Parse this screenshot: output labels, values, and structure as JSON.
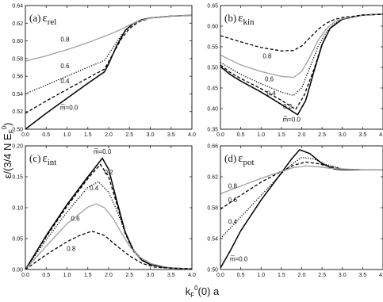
{
  "figure": {
    "ylabel": {
      "main": "ε/(3/4 N E",
      "sub": "F",
      "sup": "0",
      "tail": ")"
    },
    "xlabel": {
      "main": "k",
      "sub": "F",
      "sup": "0",
      "tail": "(0) a"
    }
  },
  "chart_data": [
    {
      "id": "a",
      "type": "line",
      "label_letter": "(a)",
      "label_main": "ε",
      "label_sub": "rel",
      "xlim": [
        0,
        4
      ],
      "ylim": [
        0.5,
        0.64
      ],
      "xticks": [
        "0.0",
        "0.5",
        "1.0",
        "1.5",
        "2.0",
        "2.5",
        "3.0",
        "3.5",
        "4.0"
      ],
      "yticks": [
        "0.50",
        "0.52",
        "0.54",
        "0.56",
        "0.58",
        "0.60",
        "0.62",
        "0.64"
      ],
      "series": [
        {
          "name": "0.0",
          "style": "solid",
          "color": "#000000",
          "x": [
            0.0,
            0.5,
            1.0,
            1.5,
            1.9,
            2.0,
            2.2,
            2.4,
            2.6,
            2.8,
            3.0,
            3.5,
            4.0
          ],
          "y": [
            0.5,
            0.518,
            0.535,
            0.552,
            0.565,
            0.574,
            0.595,
            0.612,
            0.62,
            0.624,
            0.626,
            0.628,
            0.629
          ]
        },
        {
          "name": "0.4",
          "style": "dashed",
          "color": "#000000",
          "x": [
            0.0,
            0.5,
            1.0,
            1.5,
            1.9,
            2.1,
            2.3,
            2.5,
            2.7,
            3.0,
            3.5,
            4.0
          ],
          "y": [
            0.518,
            0.532,
            0.545,
            0.558,
            0.568,
            0.585,
            0.602,
            0.614,
            0.621,
            0.626,
            0.628,
            0.629
          ]
        },
        {
          "name": "0.6",
          "style": "dotted",
          "color": "#000000",
          "x": [
            0.0,
            0.5,
            1.0,
            1.5,
            1.9,
            2.1,
            2.3,
            2.5,
            2.7,
            3.0,
            3.5,
            4.0
          ],
          "y": [
            0.54,
            0.55,
            0.56,
            0.57,
            0.578,
            0.592,
            0.606,
            0.616,
            0.622,
            0.626,
            0.628,
            0.629
          ]
        },
        {
          "name": "0.8",
          "style": "solid",
          "color": "#a0a0a0",
          "x": [
            0.0,
            0.5,
            1.0,
            1.5,
            2.0,
            2.3,
            2.5,
            2.7,
            3.0,
            3.5,
            4.0
          ],
          "y": [
            0.577,
            0.583,
            0.59,
            0.598,
            0.607,
            0.613,
            0.618,
            0.622,
            0.626,
            0.628,
            0.629
          ]
        }
      ],
      "annotations": [
        {
          "text": "0.8",
          "x": 0.95,
          "y": 0.599
        },
        {
          "text": "0.6",
          "x": 0.95,
          "y": 0.569
        },
        {
          "text": "0.4",
          "x": 0.95,
          "y": 0.552
        },
        {
          "text": "m̅=0.0",
          "x": 1.05,
          "y": 0.522
        }
      ]
    },
    {
      "id": "b",
      "type": "line",
      "label_letter": "(b)",
      "label_main": "ε",
      "label_sub": "kin",
      "xlim": [
        0,
        4
      ],
      "ylim": [
        0.35,
        0.65
      ],
      "xticks": [
        "0.0",
        "0.5",
        "1.0",
        "1.5",
        "2.0",
        "2.5",
        "3.0",
        "3.5",
        "4.0"
      ],
      "yticks": [
        "0.35",
        "0.40",
        "0.45",
        "0.50",
        "0.55",
        "0.60",
        "0.65"
      ],
      "series": [
        {
          "name": "0.0",
          "style": "solid",
          "color": "#000000",
          "x": [
            0.0,
            0.25,
            0.5,
            1.0,
            1.5,
            1.9,
            2.1,
            2.3,
            2.5,
            2.7,
            3.0,
            3.5,
            4.0
          ],
          "y": [
            0.502,
            0.482,
            0.467,
            0.44,
            0.41,
            0.385,
            0.42,
            0.49,
            0.555,
            0.595,
            0.617,
            0.627,
            0.629
          ]
        },
        {
          "name": "0.2",
          "style": "dashed",
          "color": "#000000",
          "x": [
            0.0,
            0.25,
            0.5,
            1.0,
            1.5,
            1.85,
            2.05,
            2.3,
            2.5,
            2.7,
            3.0,
            3.5,
            4.0
          ],
          "y": [
            0.506,
            0.487,
            0.473,
            0.448,
            0.42,
            0.398,
            0.43,
            0.495,
            0.556,
            0.595,
            0.617,
            0.627,
            0.629
          ]
        },
        {
          "name": "0.4",
          "style": "dotted",
          "color": "#000000",
          "x": [
            0.0,
            0.5,
            1.0,
            1.5,
            1.8,
            2.0,
            2.2,
            2.4,
            2.6,
            2.8,
            3.0,
            3.5,
            4.0
          ],
          "y": [
            0.512,
            0.483,
            0.46,
            0.44,
            0.432,
            0.45,
            0.5,
            0.55,
            0.585,
            0.605,
            0.617,
            0.627,
            0.629
          ]
        },
        {
          "name": "0.6",
          "style": "solid",
          "color": "#a0a0a0",
          "x": [
            0.0,
            0.5,
            1.0,
            1.5,
            1.8,
            2.0,
            2.2,
            2.4,
            2.6,
            2.8,
            3.0,
            3.5,
            4.0
          ],
          "y": [
            0.53,
            0.506,
            0.49,
            0.478,
            0.476,
            0.49,
            0.525,
            0.565,
            0.593,
            0.61,
            0.618,
            0.627,
            0.629
          ]
        },
        {
          "name": "0.8",
          "style": "dashed",
          "color": "#000000",
          "x": [
            0.0,
            0.5,
            1.0,
            1.5,
            1.8,
            2.0,
            2.2,
            2.4,
            2.6,
            2.8,
            3.0,
            3.5,
            4.0
          ],
          "y": [
            0.577,
            0.562,
            0.548,
            0.54,
            0.541,
            0.552,
            0.572,
            0.592,
            0.607,
            0.616,
            0.621,
            0.627,
            0.629
          ]
        }
      ],
      "annotations": [
        {
          "text": "0.8",
          "x": 1.15,
          "y": 0.522
        },
        {
          "text": "0.6",
          "x": 1.2,
          "y": 0.466
        },
        {
          "text": "0.4",
          "x": 1.25,
          "y": 0.432
        },
        {
          "text": "0.2",
          "x": 1.65,
          "y": 0.4
        },
        {
          "text": "m̅=0.0",
          "x": 1.75,
          "y": 0.368
        }
      ]
    },
    {
      "id": "c",
      "type": "line",
      "label_letter": "(c)",
      "label_main": "ε",
      "label_sub": "int",
      "xlim": [
        0,
        4
      ],
      "ylim": [
        0,
        0.2
      ],
      "xticks": [
        "0.0",
        "0.5",
        "1.0",
        "1.5",
        "2.0",
        "2.5",
        "3.0",
        "3.5",
        "4.0"
      ],
      "yticks": [
        "0.00",
        "0.05",
        "0.10",
        "0.15",
        "0.20"
      ],
      "series": [
        {
          "name": "0.0",
          "style": "solid",
          "color": "#000000",
          "x": [
            0.0,
            0.5,
            1.0,
            1.5,
            1.85,
            2.0,
            2.2,
            2.4,
            2.6,
            2.8,
            3.0,
            3.3,
            3.6,
            4.0
          ],
          "y": [
            0.0,
            0.055,
            0.105,
            0.15,
            0.18,
            0.162,
            0.11,
            0.06,
            0.03,
            0.015,
            0.008,
            0.004,
            0.002,
            0.001
          ]
        },
        {
          "name": "0.2",
          "style": "dashed",
          "color": "#000000",
          "x": [
            0.0,
            0.5,
            1.0,
            1.5,
            1.8,
            2.0,
            2.2,
            2.4,
            2.6,
            2.8,
            3.0,
            3.3,
            3.6,
            4.0
          ],
          "y": [
            0.0,
            0.053,
            0.102,
            0.147,
            0.17,
            0.15,
            0.105,
            0.058,
            0.029,
            0.015,
            0.008,
            0.004,
            0.002,
            0.001
          ]
        },
        {
          "name": "0.4",
          "style": "dotted",
          "color": "#000000",
          "x": [
            0.0,
            0.5,
            1.0,
            1.5,
            1.75,
            2.0,
            2.2,
            2.4,
            2.6,
            2.8,
            3.0,
            3.3,
            3.6,
            4.0
          ],
          "y": [
            0.0,
            0.048,
            0.093,
            0.133,
            0.142,
            0.125,
            0.095,
            0.06,
            0.032,
            0.016,
            0.008,
            0.004,
            0.002,
            0.001
          ]
        },
        {
          "name": "0.6",
          "style": "solid",
          "color": "#a0a0a0",
          "x": [
            0.0,
            0.5,
            1.0,
            1.5,
            1.7,
            1.9,
            2.1,
            2.3,
            2.5,
            2.7,
            3.0,
            3.3,
            3.6,
            4.0
          ],
          "y": [
            0.0,
            0.038,
            0.074,
            0.101,
            0.106,
            0.1,
            0.083,
            0.06,
            0.038,
            0.022,
            0.01,
            0.005,
            0.002,
            0.001
          ]
        },
        {
          "name": "0.8",
          "style": "dashed",
          "color": "#000000",
          "x": [
            0.0,
            0.5,
            1.0,
            1.3,
            1.6,
            1.9,
            2.2,
            2.5,
            2.8,
            3.1,
            3.5,
            4.0
          ],
          "y": [
            0.0,
            0.024,
            0.045,
            0.055,
            0.062,
            0.055,
            0.038,
            0.022,
            0.01,
            0.004,
            0.002,
            0.001
          ]
        }
      ],
      "annotations": [
        {
          "text": "m̅=0.0",
          "x": 1.85,
          "y": 0.187
        },
        {
          "text": "0.2",
          "x": 2.0,
          "y": 0.154
        },
        {
          "text": "0.4",
          "x": 1.65,
          "y": 0.128
        },
        {
          "text": "0.6",
          "x": 1.2,
          "y": 0.079
        },
        {
          "text": "0.8",
          "x": 1.1,
          "y": 0.03
        }
      ]
    },
    {
      "id": "d",
      "type": "line",
      "label_letter": "(d)",
      "label_main": "ε",
      "label_sub": "pot",
      "xlim": [
        0,
        4
      ],
      "ylim": [
        0.5,
        0.66
      ],
      "xticks": [
        "0.0",
        "0.5",
        "1.0",
        "1.5",
        "2.0",
        "2.5",
        "3.0",
        "3.5",
        "4.0"
      ],
      "yticks": [
        "0.50",
        "0.54",
        "0.58",
        "0.62",
        "0.66"
      ],
      "series": [
        {
          "name": "0.0",
          "style": "solid",
          "color": "#000000",
          "x": [
            0.0,
            0.25,
            0.5,
            1.0,
            1.5,
            1.75,
            1.95,
            2.2,
            2.5,
            2.8,
            3.0,
            3.5,
            4.0
          ],
          "y": [
            0.502,
            0.525,
            0.55,
            0.59,
            0.625,
            0.643,
            0.655,
            0.65,
            0.637,
            0.63,
            0.629,
            0.629,
            0.629
          ]
        },
        {
          "name": "0.4",
          "style": "dotted",
          "color": "#000000",
          "x": [
            0.0,
            0.5,
            1.0,
            1.5,
            1.8,
            2.0,
            2.3,
            2.6,
            3.0,
            3.5,
            4.0
          ],
          "y": [
            0.54,
            0.568,
            0.596,
            0.624,
            0.638,
            0.645,
            0.643,
            0.636,
            0.63,
            0.629,
            0.629
          ]
        },
        {
          "name": "0.6",
          "style": "dashed",
          "color": "#000000",
          "x": [
            0.0,
            0.5,
            1.0,
            1.5,
            1.8,
            2.1,
            2.4,
            2.7,
            3.0,
            3.5,
            4.0
          ],
          "y": [
            0.578,
            0.596,
            0.613,
            0.627,
            0.635,
            0.639,
            0.637,
            0.633,
            0.63,
            0.629,
            0.629
          ]
        },
        {
          "name": "0.8",
          "style": "solid",
          "color": "#a0a0a0",
          "x": [
            0.0,
            0.5,
            1.0,
            1.5,
            1.8,
            2.1,
            2.4,
            2.7,
            3.0,
            3.5,
            4.0
          ],
          "y": [
            0.598,
            0.608,
            0.618,
            0.627,
            0.632,
            0.634,
            0.633,
            0.631,
            0.63,
            0.629,
            0.629
          ]
        }
      ],
      "annotations": [
        {
          "text": "0.8",
          "x": 0.3,
          "y": 0.605
        },
        {
          "text": "0.6",
          "x": 0.3,
          "y": 0.587
        },
        {
          "text": "0.4",
          "x": 0.3,
          "y": 0.559
        },
        {
          "text": "m̅=0.0",
          "x": 0.45,
          "y": 0.511
        }
      ]
    }
  ]
}
